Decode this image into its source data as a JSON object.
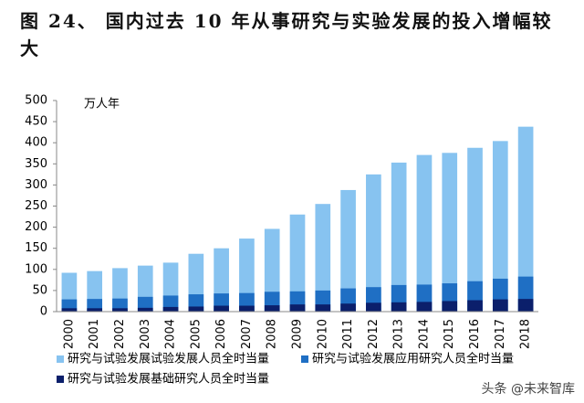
{
  "chart_data": {
    "type": "bar",
    "title": "图 24、 国内过去 10 年从事研究与实验发展的投入增幅较大",
    "unit": "万人年",
    "categories": [
      "2000",
      "2001",
      "2002",
      "2003",
      "2004",
      "2005",
      "2006",
      "2007",
      "2008",
      "2009",
      "2010",
      "2011",
      "2012",
      "2013",
      "2014",
      "2015",
      "2016",
      "2017",
      "2018"
    ],
    "series": [
      {
        "name": "研究与试验发展试验发展人员全时当量",
        "color": "#87c3f0",
        "values": [
          92,
          96,
          103,
          109,
          116,
          137,
          150,
          173,
          196,
          230,
          255,
          288,
          325,
          353,
          371,
          376,
          388,
          404,
          438
        ]
      },
      {
        "name": "研究与试验发展应用研究人员全时当量",
        "color": "#1f6fc4",
        "values": [
          29,
          30,
          31,
          35,
          38,
          41,
          43,
          44,
          47,
          48,
          50,
          55,
          58,
          63,
          64,
          67,
          72,
          78,
          83
        ]
      },
      {
        "name": "研究与试验发展基础研究人员全时当量",
        "color": "#0b1f6b",
        "values": [
          8,
          8,
          8,
          9,
          11,
          12,
          14,
          14,
          15,
          17,
          17,
          19,
          21,
          22,
          23,
          25,
          27,
          29,
          30
        ]
      }
    ],
    "ylim": [
      0,
      500
    ],
    "yticks": [
      0,
      50,
      100,
      150,
      200,
      250,
      300,
      350,
      400,
      450,
      500
    ],
    "watermark": "头条 @未来智库"
  }
}
